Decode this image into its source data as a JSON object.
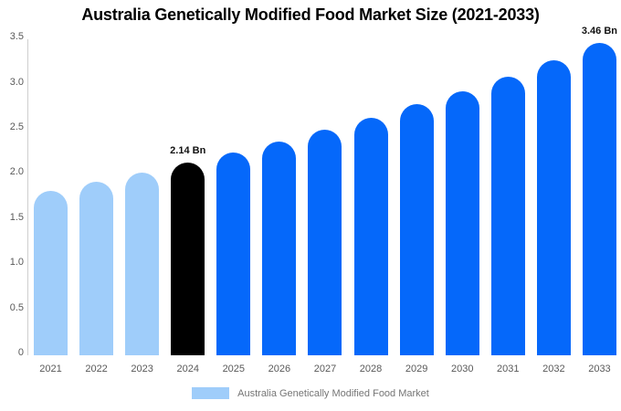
{
  "title": "Australia Genetically Modified Food Market Size (2021-2033)",
  "legend": {
    "label": "Australia Genetically Modified Food Market",
    "swatch_color": "#9FCDFA"
  },
  "colors": {
    "light_blue": "#9FCDFA",
    "blue": "#0568FA",
    "highlight_black": "#000000",
    "axis_line": "#CFCFCF",
    "tick_text": "#595959",
    "legend_text": "#757575",
    "annotation_text": "#111111",
    "background": "#FFFFFF"
  },
  "chart_data": {
    "type": "bar",
    "title": "Australia Genetically Modified Food Market Size (2021-2033)",
    "categories": [
      "2021",
      "2022",
      "2023",
      "2024",
      "2025",
      "2026",
      "2027",
      "2028",
      "2029",
      "2030",
      "2031",
      "2032",
      "2033"
    ],
    "values": [
      1.82,
      1.92,
      2.02,
      2.14,
      2.25,
      2.37,
      2.5,
      2.63,
      2.78,
      2.93,
      3.09,
      3.27,
      3.46
    ],
    "unit": "Bn",
    "ylim": [
      0,
      3.5
    ],
    "yticks": [
      "3.5",
      "3.0",
      "2.5",
      "2.0",
      "1.5",
      "1.0",
      "0.5",
      "0"
    ],
    "bar_colors": [
      "light_blue",
      "light_blue",
      "light_blue",
      "highlight_black",
      "blue",
      "blue",
      "blue",
      "blue",
      "blue",
      "blue",
      "blue",
      "blue",
      "blue"
    ],
    "annotations": [
      {
        "category": "2024",
        "text": "2.14 Bn"
      },
      {
        "category": "2033",
        "text": "3.46 Bn"
      }
    ],
    "legend_entries": [
      "Australia Genetically Modified Food Market"
    ],
    "legend_position": "bottom-center",
    "grid": false,
    "xlabel": "",
    "ylabel": ""
  }
}
